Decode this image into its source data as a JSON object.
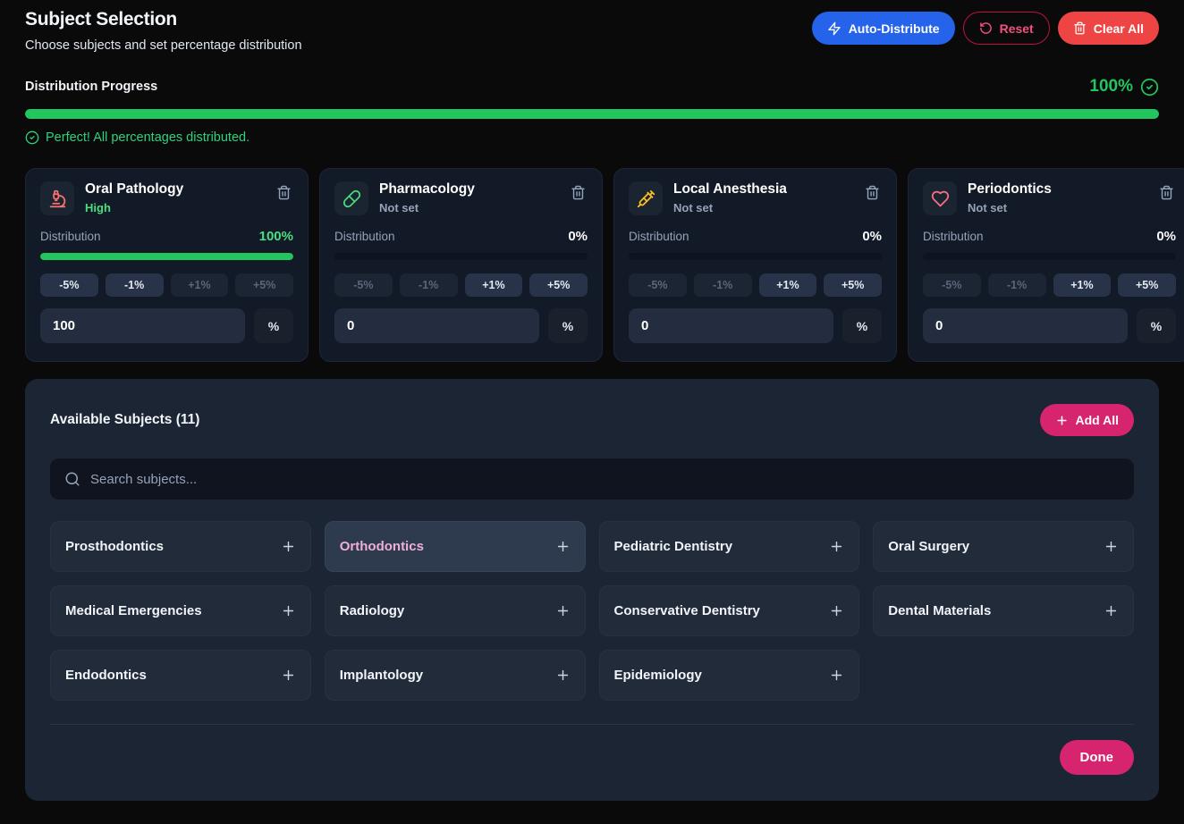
{
  "header": {
    "title": "Subject Selection",
    "subtitle": "Choose subjects and set percentage distribution",
    "auto_distribute_label": "Auto-Distribute",
    "reset_label": "Reset",
    "clear_all_label": "Clear All"
  },
  "progress": {
    "label": "Distribution Progress",
    "value": "100%",
    "percent": 100,
    "message": "Perfect! All percentages distributed."
  },
  "stepper_labels": [
    "-5%",
    "-1%",
    "+1%",
    "+5%"
  ],
  "percent_suffix": "%",
  "distribution_label": "Distribution",
  "colors": {
    "accent_blue": "#2563eb",
    "accent_pink": "#d6246e",
    "accent_red": "#ee4444",
    "accent_green": "#22c55e",
    "status_set": "#4ade80",
    "status_not_set": "#94a3b8"
  },
  "selected_subjects": [
    {
      "name": "Oral Pathology",
      "status": "High",
      "status_color": "#4ade80",
      "icon": "microscope-icon",
      "icon_color": "#f87171",
      "value": "100%",
      "value_color": "#4ade80",
      "percent": 100,
      "input": "100",
      "dec_enabled": true,
      "inc_enabled": false
    },
    {
      "name": "Pharmacology",
      "status": "Not set",
      "status_color": "#94a3b8",
      "icon": "pill-icon",
      "icon_color": "#4ade80",
      "value": "0%",
      "value_color": "#f8fafc",
      "percent": 0,
      "input": "0",
      "dec_enabled": false,
      "inc_enabled": true
    },
    {
      "name": "Local Anesthesia",
      "status": "Not set",
      "status_color": "#94a3b8",
      "icon": "syringe-icon",
      "icon_color": "#fbbf24",
      "value": "0%",
      "value_color": "#f8fafc",
      "percent": 0,
      "input": "0",
      "dec_enabled": false,
      "inc_enabled": true
    },
    {
      "name": "Periodontics",
      "status": "Not set",
      "status_color": "#94a3b8",
      "icon": "heart-icon",
      "icon_color": "#fb7185",
      "value": "0%",
      "value_color": "#f8fafc",
      "percent": 0,
      "input": "0",
      "dec_enabled": false,
      "inc_enabled": true
    }
  ],
  "available": {
    "title": "Available Subjects (11)",
    "add_all_label": "Add All",
    "search_placeholder": "Search subjects...",
    "done_label": "Done",
    "subjects": [
      {
        "label": "Prosthodontics",
        "highlighted": false
      },
      {
        "label": "Orthodontics",
        "highlighted": true
      },
      {
        "label": "Pediatric Dentistry",
        "highlighted": false
      },
      {
        "label": "Oral Surgery",
        "highlighted": false
      },
      {
        "label": "Medical Emergencies",
        "highlighted": false
      },
      {
        "label": "Radiology",
        "highlighted": false
      },
      {
        "label": "Conservative Dentistry",
        "highlighted": false
      },
      {
        "label": "Dental Materials",
        "highlighted": false
      },
      {
        "label": "Endodontics",
        "highlighted": false
      },
      {
        "label": "Implantology",
        "highlighted": false
      },
      {
        "label": "Epidemiology",
        "highlighted": false
      }
    ]
  }
}
